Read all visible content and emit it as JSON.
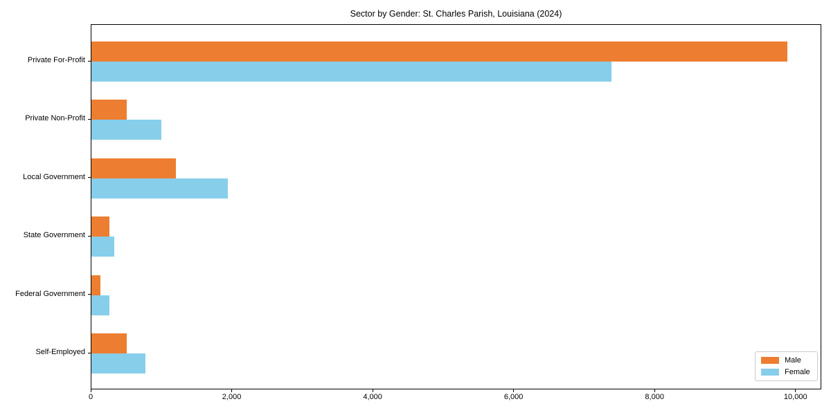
{
  "title": "Sector by Gender: St. Charles Parish, Louisiana (2024)",
  "legend": {
    "items": [
      {
        "label": "Male",
        "color": "#ED7D31"
      },
      {
        "label": "Female",
        "color": "#87CEEB"
      }
    ]
  },
  "chart_data": {
    "type": "bar",
    "orientation": "horizontal",
    "title": "Sector by Gender: St. Charles Parish, Louisiana (2024)",
    "categories": [
      "Private For-Profit",
      "Private Non-Profit",
      "Local Government",
      "State Government",
      "Federal Government",
      "Self-Employed"
    ],
    "series": [
      {
        "name": "Male",
        "color": "#ED7D31",
        "values": [
          9870,
          500,
          1200,
          255,
          130,
          500
        ]
      },
      {
        "name": "Female",
        "color": "#87CEEB",
        "values": [
          7380,
          990,
          1935,
          325,
          255,
          765
        ]
      }
    ],
    "xlabel": "",
    "ylabel": "",
    "xlim": [
      0,
      10366
    ],
    "xticks": [
      0,
      2000,
      4000,
      6000,
      8000,
      10000
    ],
    "xtick_labels": [
      "0",
      "2,000",
      "4,000",
      "6,000",
      "8,000",
      "10,000"
    ],
    "grid": false,
    "legend_position": "lower right",
    "bar_color_male": "#ED7D31",
    "bar_color_female": "#87CEEB"
  }
}
